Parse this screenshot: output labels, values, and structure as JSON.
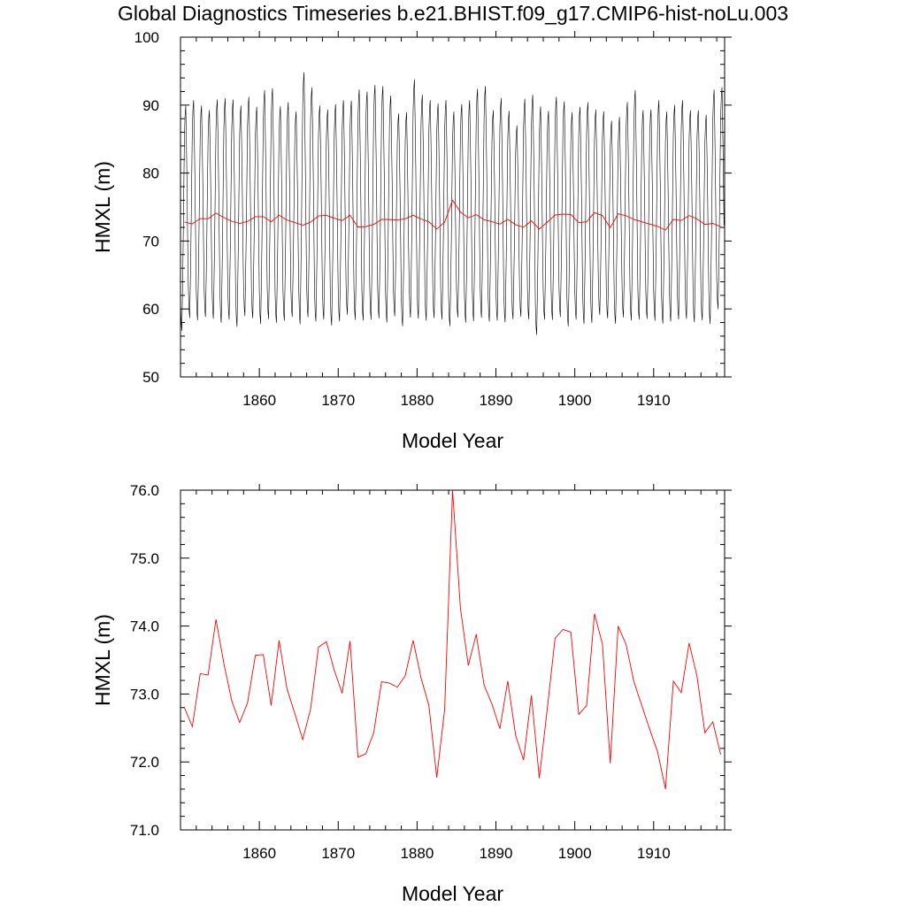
{
  "title": "Global Diagnostics Timeseries b.e21.BHIST.f09_g17.CMIP6-hist-noLu.003",
  "colors": {
    "monthly": "#000000",
    "annual": "#ff0000",
    "axes": "#000000"
  },
  "chart_data": [
    {
      "type": "line",
      "xlabel": "Model Year",
      "ylabel": "HMXL (m)",
      "xlim": [
        1850,
        1919
      ],
      "ylim": [
        50,
        100
      ],
      "x_ticks": [
        1860,
        1870,
        1880,
        1890,
        1900,
        1910
      ],
      "x_tick_labels": [
        "1860",
        "1870",
        "1880",
        "1890",
        "1900",
        "1910"
      ],
      "y_ticks": [
        50,
        60,
        70,
        80,
        90,
        100
      ],
      "y_tick_labels": [
        "50",
        "60",
        "70",
        "80",
        "90",
        "100"
      ],
      "series": [
        {
          "role": "monthly",
          "color": "#000000",
          "annual_cycle_max": [
            90.5,
            91.3,
            90.5,
            89.8,
            91.4,
            91.6,
            91.4,
            90.5,
            91.8,
            90.3,
            92.8,
            93.1,
            90.4,
            91.0,
            89.6,
            95.5,
            93.2,
            90.5,
            89.9,
            90.7,
            91.3,
            91.2,
            92.9,
            92.6,
            93.6,
            93.4,
            92.0,
            89.3,
            89.5,
            94.4,
            92.1,
            91.3,
            90.8,
            91.3,
            89.6,
            90.7,
            91.3,
            93.0,
            93.4,
            89.8,
            91.6,
            89.7,
            87.5,
            91.5,
            92.1,
            90.4,
            89.7,
            91.8,
            91.1,
            89.5,
            90.3,
            91.0,
            89.9,
            89.6,
            88.2,
            88.8,
            91.0,
            92.8,
            89.8,
            89.9,
            91.3,
            89.6,
            90.6,
            91.3,
            89.8,
            89.8,
            89.1,
            92.9,
            93.2
          ],
          "annual_cycle_min": [
            56.2,
            58.1,
            57.8,
            58.3,
            58.0,
            57.4,
            57.9,
            56.8,
            58.4,
            58.1,
            57.2,
            57.9,
            57.4,
            57.7,
            58.3,
            57.1,
            58.2,
            57.6,
            57.9,
            57.0,
            57.6,
            58.6,
            57.8,
            57.7,
            57.8,
            58.0,
            57.4,
            58.4,
            56.9,
            58.1,
            58.0,
            57.7,
            58.1,
            57.9,
            56.9,
            58.2,
            57.4,
            57.6,
            58.1,
            57.6,
            57.7,
            57.5,
            58.0,
            58.3,
            57.9,
            55.6,
            57.9,
            57.8,
            58.3,
            56.9,
            57.9,
            57.2,
            57.4,
            58.6,
            58.1,
            57.3,
            58.2,
            57.7,
            57.9,
            58.0,
            57.7,
            57.3,
            57.6,
            57.9,
            58.0,
            57.5,
            57.8,
            57.2,
            59.4
          ]
        },
        {
          "role": "annual",
          "color": "#ff0000",
          "values": [
            72.8,
            72.52,
            73.3,
            73.28,
            74.1,
            73.45,
            72.9,
            72.58,
            72.87,
            73.57,
            73.58,
            72.83,
            73.79,
            73.08,
            72.71,
            72.33,
            72.78,
            73.69,
            73.77,
            73.35,
            73.01,
            73.78,
            72.07,
            72.12,
            72.43,
            73.18,
            73.16,
            73.1,
            73.27,
            73.79,
            73.24,
            72.83,
            71.77,
            72.78,
            76.0,
            74.26,
            73.42,
            73.88,
            73.13,
            72.85,
            72.49,
            73.19,
            72.39,
            72.03,
            72.98,
            71.76,
            72.77,
            73.82,
            73.95,
            73.91,
            72.7,
            72.83,
            74.18,
            73.74,
            71.98,
            74.0,
            73.73,
            73.18,
            72.83,
            72.48,
            72.15,
            71.6,
            73.19,
            73.02,
            73.75,
            73.26,
            72.43,
            72.59,
            72.11
          ]
        }
      ]
    },
    {
      "type": "line",
      "xlabel": "Model Year",
      "ylabel": "HMXL (m)",
      "xlim": [
        1850,
        1919
      ],
      "ylim": [
        71,
        76
      ],
      "x_ticks": [
        1860,
        1870,
        1880,
        1890,
        1900,
        1910
      ],
      "x_tick_labels": [
        "1860",
        "1870",
        "1880",
        "1890",
        "1900",
        "1910"
      ],
      "y_ticks": [
        71,
        72,
        73,
        74,
        75,
        76
      ],
      "y_tick_labels": [
        "71.0",
        "72.0",
        "73.0",
        "74.0",
        "75.0",
        "76.0"
      ],
      "series": [
        {
          "role": "annual",
          "color": "#ff0000",
          "values": [
            72.8,
            72.52,
            73.3,
            73.28,
            74.1,
            73.45,
            72.9,
            72.58,
            72.87,
            73.57,
            73.58,
            72.83,
            73.79,
            73.08,
            72.71,
            72.33,
            72.78,
            73.69,
            73.77,
            73.35,
            73.01,
            73.78,
            72.07,
            72.12,
            72.43,
            73.18,
            73.16,
            73.1,
            73.27,
            73.79,
            73.24,
            72.83,
            71.77,
            72.78,
            76.0,
            74.26,
            73.42,
            73.88,
            73.13,
            72.85,
            72.49,
            73.19,
            72.39,
            72.03,
            72.98,
            71.76,
            72.77,
            73.82,
            73.95,
            73.91,
            72.7,
            72.83,
            74.18,
            73.74,
            71.98,
            74.0,
            73.73,
            73.18,
            72.83,
            72.48,
            72.15,
            71.6,
            73.19,
            73.02,
            73.75,
            73.26,
            72.43,
            72.59,
            72.11
          ]
        }
      ]
    }
  ]
}
